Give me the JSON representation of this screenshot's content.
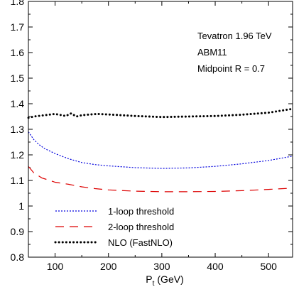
{
  "chart_data": {
    "type": "line",
    "title": "",
    "xlabel": "P",
    "xlabel_sub": "t",
    "xlabel_unit": "(GeV)",
    "ylabel": "",
    "xlim": [
      50,
      545
    ],
    "ylim": [
      0.8,
      1.8
    ],
    "xticks": [
      {
        "value": 100,
        "label": "100"
      },
      {
        "value": 200,
        "label": "200"
      },
      {
        "value": 300,
        "label": "300"
      },
      {
        "value": 400,
        "label": "400"
      },
      {
        "value": 500,
        "label": "500"
      }
    ],
    "yticks": [
      {
        "value": 0.8,
        "label": "0.8"
      },
      {
        "value": 0.9,
        "label": "0.9"
      },
      {
        "value": 1.0,
        "label": "1"
      },
      {
        "value": 1.1,
        "label": "1.1"
      },
      {
        "value": 1.2,
        "label": "1.2"
      },
      {
        "value": 1.3,
        "label": "1.3"
      },
      {
        "value": 1.4,
        "label": "1.4"
      },
      {
        "value": 1.5,
        "label": "1.5"
      },
      {
        "value": 1.6,
        "label": "1.6"
      },
      {
        "value": 1.7,
        "label": "1.7"
      },
      {
        "value": 1.8,
        "label": "1.8"
      }
    ],
    "annotations": [
      "Tevatron 1.96 TeV",
      "ABM11",
      "Midpoint R = 0.7"
    ],
    "annotation_placement": "top-right",
    "legend_placement": "bottom-left",
    "grid": false,
    "series": [
      {
        "name": "1-loop threshold",
        "color": "#0000dd",
        "style": "dotted",
        "x": [
          50,
          60,
          70,
          80,
          100,
          125,
          150,
          175,
          200,
          250,
          300,
          350,
          400,
          450,
          500,
          545
        ],
        "y": [
          1.29,
          1.26,
          1.24,
          1.225,
          1.205,
          1.185,
          1.17,
          1.162,
          1.157,
          1.15,
          1.147,
          1.149,
          1.155,
          1.165,
          1.178,
          1.195
        ]
      },
      {
        "name": "2-loop threshold",
        "color": "#dd0000",
        "style": "dashed",
        "x": [
          50,
          60,
          75,
          90,
          100,
          125,
          150,
          175,
          200,
          250,
          300,
          350,
          400,
          450,
          500,
          545
        ],
        "y": [
          1.155,
          1.13,
          1.11,
          1.1,
          1.093,
          1.085,
          1.075,
          1.068,
          1.063,
          1.058,
          1.056,
          1.056,
          1.057,
          1.06,
          1.065,
          1.07
        ]
      },
      {
        "name": "NLO (FastNLO)",
        "color": "#000000",
        "style": "dotted-heavy",
        "x": [
          50,
          60,
          80,
          100,
          120,
          130,
          140,
          150,
          160,
          180,
          200,
          250,
          300,
          350,
          400,
          450,
          500,
          545
        ],
        "y": [
          1.345,
          1.35,
          1.355,
          1.36,
          1.352,
          1.362,
          1.35,
          1.355,
          1.357,
          1.36,
          1.358,
          1.352,
          1.348,
          1.35,
          1.352,
          1.357,
          1.365,
          1.38
        ]
      }
    ]
  }
}
